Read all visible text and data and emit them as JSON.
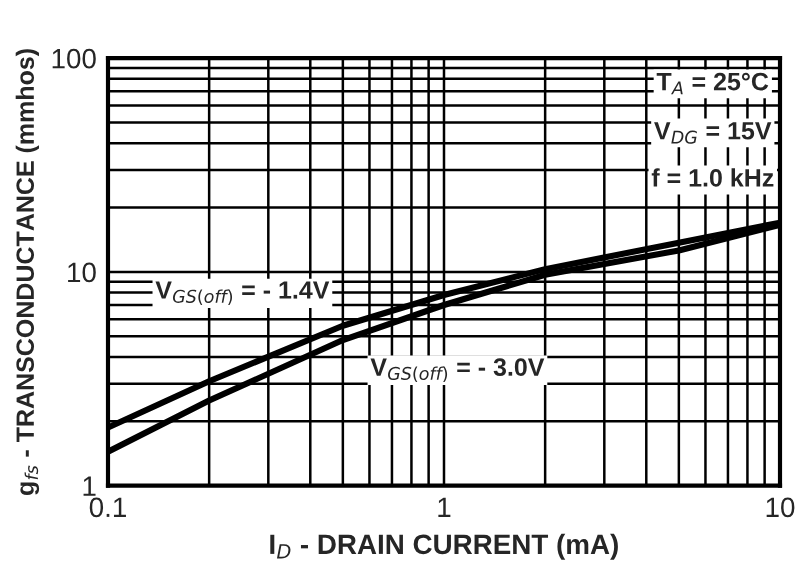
{
  "chart_data": {
    "type": "line",
    "xlabel": "I$_{D}$ - DRAIN CURRENT (mA)",
    "ylabel": "g$_{fs}$ - TRANSCONDUCTANCE (mmhos)",
    "log": "xy",
    "grid": true,
    "xlim": [
      0.1,
      10
    ],
    "ylim": [
      1,
      100
    ],
    "xticks": [
      0.1,
      1,
      10
    ],
    "yticks": [
      1,
      10,
      100
    ],
    "annotations": [
      "T$_{A}$ = 25°C",
      "V$_{DG}$ = 15V",
      "f = 1.0 kHz",
      "V$_{GS(off)}$ = - 1.4V",
      "V$_{GS(off)}$ = - 3.0V"
    ],
    "x": [
      0.1,
      0.2,
      0.5,
      1,
      2,
      5,
      10
    ],
    "series": [
      {
        "color": "#000000",
        "values": [
          1.87,
          3.08,
          5.6,
          7.8,
          10.3,
          13.7,
          17
        ]
      },
      {
        "color": "#000000",
        "values": [
          1.44,
          2.5,
          4.8,
          7.0,
          9.7,
          12.6,
          16.6
        ]
      }
    ]
  }
}
